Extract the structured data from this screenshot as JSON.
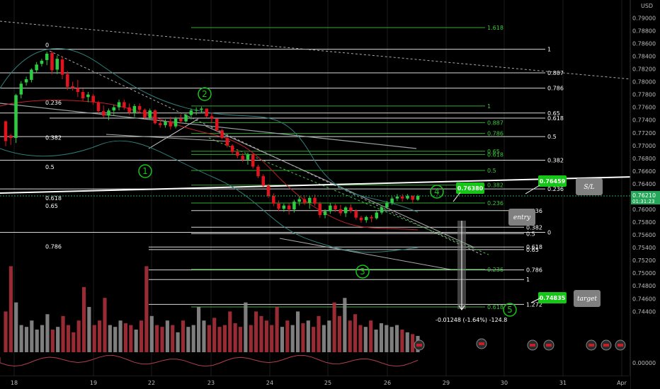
{
  "window": {
    "currency": "USD"
  },
  "colors": {
    "background": "#000000",
    "up": "#2ecc40",
    "down": "#e0141e",
    "vol_up": "#8c8c8c",
    "vol_down": "#a8303a",
    "fib_white": "#ffffff",
    "fib_green": "#3cc83c",
    "label_green": "#16c616",
    "note_box": "#808080",
    "last_price": "#26a65a"
  },
  "chart_data": {
    "type": "candlestick",
    "symbol_quote": "USD",
    "y_axis": {
      "ylim": [
        0.7396,
        0.7906
      ],
      "ticks": [
        "0.79000",
        "0.78800",
        "0.78600",
        "0.78400",
        "0.78200",
        "0.78000",
        "0.77800",
        "0.77600",
        "0.77400",
        "0.77200",
        "0.77000",
        "0.76800",
        "0.76600",
        "0.76400",
        "0.76200",
        "0.76000",
        "0.75800",
        "0.75600",
        "0.75400",
        "0.75200",
        "0.75000",
        "0.74800",
        "0.74600",
        "0.74400"
      ]
    },
    "last_price": {
      "value": "0.76210",
      "countdown": "01:31:23"
    },
    "x_axis": {
      "ticks": [
        "18",
        "19",
        "22",
        "23",
        "24",
        "25",
        "26",
        "29",
        "30",
        "31",
        "Apr"
      ]
    },
    "candles": [
      [
        0.7738,
        0.7739,
        0.7699,
        0.7707
      ],
      [
        0.7716,
        0.7718,
        0.7701,
        0.7712
      ],
      [
        0.7712,
        0.7781,
        0.7704,
        0.7779
      ],
      [
        0.778,
        0.7801,
        0.7774,
        0.7797
      ],
      [
        0.7799,
        0.7808,
        0.7794,
        0.7804
      ],
      [
        0.7803,
        0.7821,
        0.7799,
        0.7819
      ],
      [
        0.7818,
        0.7831,
        0.7814,
        0.7827
      ],
      [
        0.7828,
        0.7836,
        0.7824,
        0.7833
      ],
      [
        0.7834,
        0.7847,
        0.7826,
        0.7844
      ],
      [
        0.7845,
        0.7848,
        0.7812,
        0.7818
      ],
      [
        0.7819,
        0.7841,
        0.7812,
        0.7836
      ],
      [
        0.7835,
        0.784,
        0.7804,
        0.7811
      ],
      [
        0.7812,
        0.7817,
        0.7787,
        0.7792
      ],
      [
        0.7793,
        0.78,
        0.7786,
        0.779
      ],
      [
        0.779,
        0.7803,
        0.7776,
        0.7784
      ],
      [
        0.7784,
        0.7789,
        0.777,
        0.7774
      ],
      [
        0.7776,
        0.7784,
        0.7768,
        0.778
      ],
      [
        0.7778,
        0.7781,
        0.7764,
        0.7768
      ],
      [
        0.7768,
        0.777,
        0.775,
        0.7754
      ],
      [
        0.7754,
        0.7763,
        0.7744,
        0.7747
      ],
      [
        0.7747,
        0.7758,
        0.774,
        0.7755
      ],
      [
        0.7755,
        0.7764,
        0.7748,
        0.776
      ],
      [
        0.776,
        0.7772,
        0.7755,
        0.7768
      ],
      [
        0.7768,
        0.7772,
        0.7756,
        0.776
      ],
      [
        0.776,
        0.7766,
        0.7748,
        0.7752
      ],
      [
        0.7752,
        0.7765,
        0.7745,
        0.7762
      ],
      [
        0.7762,
        0.7766,
        0.775,
        0.7756
      ],
      [
        0.7756,
        0.7758,
        0.7742,
        0.7744
      ],
      [
        0.7744,
        0.7758,
        0.7741,
        0.7755
      ],
      [
        0.7755,
        0.7757,
        0.7733,
        0.7735
      ],
      [
        0.7735,
        0.774,
        0.7728,
        0.7732
      ],
      [
        0.7732,
        0.7741,
        0.7728,
        0.7738
      ],
      [
        0.7738,
        0.7745,
        0.7725,
        0.773
      ],
      [
        0.773,
        0.7745,
        0.7727,
        0.7742
      ],
      [
        0.7742,
        0.7749,
        0.7735,
        0.7738
      ],
      [
        0.7738,
        0.775,
        0.7736,
        0.7748
      ],
      [
        0.7748,
        0.7758,
        0.7741,
        0.7755
      ],
      [
        0.7755,
        0.776,
        0.7748,
        0.7756
      ],
      [
        0.7756,
        0.7761,
        0.7751,
        0.7758
      ],
      [
        0.7758,
        0.7758,
        0.7744,
        0.7746
      ],
      [
        0.7746,
        0.7752,
        0.7735,
        0.7742
      ],
      [
        0.7742,
        0.7742,
        0.7722,
        0.7724
      ],
      [
        0.7724,
        0.7726,
        0.771,
        0.7712
      ],
      [
        0.7712,
        0.7713,
        0.7697,
        0.77
      ],
      [
        0.77,
        0.7702,
        0.7687,
        0.769
      ],
      [
        0.769,
        0.7694,
        0.768,
        0.7684
      ],
      [
        0.7684,
        0.7688,
        0.7674,
        0.7678
      ],
      [
        0.7678,
        0.7689,
        0.767,
        0.7686
      ],
      [
        0.7686,
        0.7688,
        0.7664,
        0.7667
      ],
      [
        0.7667,
        0.767,
        0.7649,
        0.7652
      ],
      [
        0.7652,
        0.7655,
        0.7634,
        0.7637
      ],
      [
        0.7637,
        0.764,
        0.7618,
        0.7621
      ],
      [
        0.7621,
        0.7625,
        0.7605,
        0.7609
      ],
      [
        0.7609,
        0.7614,
        0.7597,
        0.7601
      ],
      [
        0.7601,
        0.7609,
        0.7596,
        0.7606
      ],
      [
        0.7606,
        0.761,
        0.7592,
        0.76
      ],
      [
        0.76,
        0.7615,
        0.7595,
        0.7612
      ],
      [
        0.7612,
        0.762,
        0.7606,
        0.7616
      ],
      [
        0.7616,
        0.7622,
        0.7607,
        0.761
      ],
      [
        0.761,
        0.7621,
        0.7601,
        0.7618
      ],
      [
        0.7618,
        0.7623,
        0.7606,
        0.7609
      ],
      [
        0.7609,
        0.7612,
        0.7587,
        0.7591
      ],
      [
        0.7591,
        0.76,
        0.7586,
        0.7597
      ],
      [
        0.7597,
        0.761,
        0.7593,
        0.7606
      ],
      [
        0.7606,
        0.7609,
        0.7596,
        0.76
      ],
      [
        0.76,
        0.7607,
        0.759,
        0.7594
      ],
      [
        0.7594,
        0.7605,
        0.7588,
        0.7603
      ],
      [
        0.7603,
        0.7608,
        0.7594,
        0.7598
      ],
      [
        0.7598,
        0.76,
        0.7584,
        0.7587
      ],
      [
        0.7587,
        0.759,
        0.7579,
        0.7583
      ],
      [
        0.7583,
        0.759,
        0.7579,
        0.7588
      ],
      [
        0.7588,
        0.7591,
        0.758,
        0.7586
      ],
      [
        0.7586,
        0.7598,
        0.7584,
        0.7595
      ],
      [
        0.7595,
        0.7606,
        0.7592,
        0.7603
      ],
      [
        0.7603,
        0.7613,
        0.76,
        0.761
      ],
      [
        0.761,
        0.762,
        0.7607,
        0.7617
      ],
      [
        0.7617,
        0.7624,
        0.7613,
        0.762
      ],
      [
        0.762,
        0.7624,
        0.7612,
        0.7617
      ],
      [
        0.7617,
        0.7624,
        0.7615,
        0.7621
      ],
      [
        0.7621,
        0.7622,
        0.761,
        0.7615
      ],
      [
        0.7615,
        0.7623,
        0.7613,
        0.7621
      ]
    ],
    "volume": [
      0.45,
      0.95,
      0.55,
      0.3,
      0.28,
      0.35,
      0.25,
      0.3,
      0.42,
      0.25,
      0.28,
      0.4,
      0.3,
      0.22,
      0.35,
      0.72,
      0.5,
      0.3,
      0.35,
      0.6,
      0.3,
      0.28,
      0.35,
      0.32,
      0.3,
      0.25,
      0.35,
      0.95,
      0.4,
      0.3,
      0.28,
      0.35,
      0.3,
      0.22,
      0.35,
      0.28,
      0.3,
      0.5,
      0.35,
      0.3,
      0.38,
      0.28,
      0.3,
      0.45,
      0.32,
      0.28,
      0.55,
      0.3,
      0.45,
      0.4,
      0.35,
      0.3,
      0.5,
      0.28,
      0.35,
      0.3,
      0.45,
      0.32,
      0.35,
      0.28,
      0.4,
      0.3,
      0.35,
      0.55,
      0.4,
      0.6,
      0.35,
      0.42,
      0.3,
      0.28,
      0.35,
      0.25,
      0.32,
      0.3,
      0.28,
      0.3,
      0.25,
      0.22,
      0.2,
      0.18
    ],
    "fib_levels_upper": [
      {
        "label": "1.618",
        "price": 0.7885,
        "color": "green",
        "x0": 270,
        "x1": 685
      },
      {
        "label": "1",
        "price": 0.7851,
        "color": "white",
        "x0": 0,
        "x1": 770
      },
      {
        "label": "0.887",
        "price": 0.7814,
        "color": "white",
        "x0": 0,
        "x1": 770
      },
      {
        "label": "0.786",
        "price": 0.779,
        "color": "white",
        "x0": 0,
        "x1": 770
      },
      {
        "label": "1",
        "price": 0.7762,
        "color": "green",
        "x0": 270,
        "x1": 685
      },
      {
        "label": "0.65",
        "price": 0.7751,
        "color": "white",
        "x0": 0,
        "x1": 770
      },
      {
        "label": "0.618",
        "price": 0.7743,
        "color": "white",
        "x0": 70,
        "x1": 770
      },
      {
        "label": "0.887",
        "price": 0.7736,
        "color": "green",
        "x0": 270,
        "x1": 685
      },
      {
        "label": "0.786",
        "price": 0.7719,
        "color": "green",
        "x0": 270,
        "x1": 685
      },
      {
        "label": "0.5",
        "price": 0.7714,
        "color": "white",
        "x0": 0,
        "x1": 770
      },
      {
        "label": "0.65",
        "price": 0.7691,
        "color": "green",
        "x0": 270,
        "x1": 685
      },
      {
        "label": "0.618",
        "price": 0.7686,
        "color": "green",
        "x0": 270,
        "x1": 685
      },
      {
        "label": "0.382",
        "price": 0.7677,
        "color": "white",
        "x0": 0,
        "x1": 770
      },
      {
        "label": "0.5",
        "price": 0.7661,
        "color": "green",
        "x0": 270,
        "x1": 685
      },
      {
        "label": "0.382",
        "price": 0.7638,
        "color": "green",
        "x0": 270,
        "x1": 685
      },
      {
        "label": "0.236",
        "price": 0.7632,
        "color": "white",
        "x0": 0,
        "x1": 770
      },
      {
        "label": "0.236",
        "price": 0.761,
        "color": "green",
        "x0": 270,
        "x1": 685
      },
      {
        "label": "0.236",
        "price": 0.7598,
        "color": "white",
        "x0": 270,
        "x1": 740
      },
      {
        "label": "0.382",
        "price": 0.7572,
        "color": "white",
        "x0": 270,
        "x1": 740
      },
      {
        "label": "0",
        "price": 0.7564,
        "color": "white",
        "x0": 0,
        "x1": 770
      },
      {
        "label": "0.5",
        "price": 0.7562,
        "color": "white",
        "x0": 270,
        "x1": 740
      },
      {
        "label": "0.618",
        "price": 0.7541,
        "color": "white",
        "x0": 210,
        "x1": 740
      },
      {
        "label": "0.65",
        "price": 0.7537,
        "color": "white",
        "x0": 210,
        "x1": 740
      },
      {
        "label": "0.786",
        "price": 0.7505,
        "color": "white",
        "x0": 210,
        "x1": 740
      },
      {
        "label": "1",
        "price": 0.749,
        "color": "white",
        "x0": 210,
        "x1": 740
      },
      {
        "label": "1.272",
        "price": 0.7451,
        "color": "white",
        "x0": 210,
        "x1": 740
      },
      {
        "label": "0.618",
        "price": 0.7447,
        "color": "green",
        "x0": 270,
        "x1": 685
      },
      {
        "label": "0.236",
        "price": 0.7506,
        "color": "green",
        "x0": 270,
        "x1": 685
      }
    ],
    "left_labels": [
      {
        "label": "0",
        "price": 0.7852
      },
      {
        "label": "0.236",
        "price": 0.7762
      },
      {
        "label": "0.382",
        "price": 0.7707
      },
      {
        "label": "0.5",
        "price": 0.7661
      },
      {
        "label": "0.618",
        "price": 0.7612
      },
      {
        "label": "0.65",
        "price": 0.76
      },
      {
        "label": "0.786",
        "price": 0.7536
      }
    ],
    "wave_labels": [
      "1",
      "2",
      "3",
      "4",
      "5"
    ],
    "price_tags": [
      {
        "text": "0.76380",
        "note": ""
      },
      {
        "text": "0.76459",
        "note": "S/L"
      },
      {
        "text": "0.74835",
        "note": "target"
      }
    ],
    "entry_note": "entry",
    "measure_text": "-0.01248 (-1.64%) -124.8",
    "indicator_values": [
      "0.00000"
    ]
  }
}
